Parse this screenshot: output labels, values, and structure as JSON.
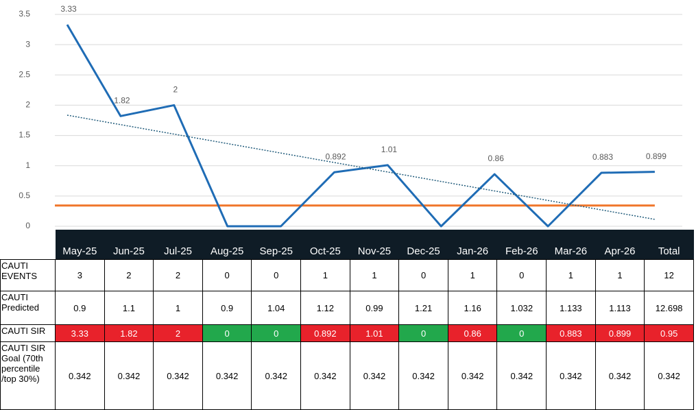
{
  "chart_data": {
    "type": "line",
    "ylim": [
      0,
      3.5
    ],
    "yticks": [
      0,
      0.5,
      1,
      1.5,
      2,
      2.5,
      3,
      3.5
    ],
    "grid": true,
    "trendline": "linear",
    "series": [
      {
        "color": "#1f6cb5",
        "values": [
          3.33,
          1.82,
          2,
          0,
          0,
          0.892,
          1.01,
          0,
          0.86,
          0,
          0.883,
          0.899
        ],
        "data_labels": true,
        "trendline_color": "#1f5a7a"
      },
      {
        "color": "#f0762a",
        "values": [
          0.342,
          0.342,
          0.342,
          0.342,
          0.342,
          0.342,
          0.342,
          0.342,
          0.342,
          0.342,
          0.342,
          0.342
        ],
        "data_labels": false
      }
    ]
  },
  "table": {
    "columns": [
      "May-25",
      "Jun-25",
      "Jul-25",
      "Aug-25",
      "Sep-25",
      "Oct-25",
      "Nov-25",
      "Dec-25",
      "Jan-26",
      "Feb-26",
      "Mar-26",
      "Apr-26",
      "Total"
    ],
    "cell_colors": {
      "above_goal": "#e8222b",
      "at_or_below_goal": "#22a84c"
    },
    "rows": [
      {
        "label": "CAUTI EVENTS",
        "cells": [
          3,
          2,
          2,
          0,
          0,
          1,
          1,
          0,
          1,
          0,
          1,
          1,
          12
        ]
      },
      {
        "label": "CAUTI Predicted",
        "cells": [
          0.9,
          1.1,
          1,
          0.9,
          1.04,
          1.12,
          0.99,
          1.21,
          1.16,
          1.032,
          1.133,
          1.113,
          12.698
        ]
      },
      {
        "label": "CAUTI SIR",
        "cells": [
          3.33,
          1.82,
          2,
          0,
          0,
          0.892,
          1.01,
          0,
          0.86,
          0,
          0.883,
          0.899,
          0.95
        ],
        "colored": true
      },
      {
        "label": "CAUTI SIR Goal (70th percentile /top 30%)",
        "cells": [
          0.342,
          0.342,
          0.342,
          0.342,
          0.342,
          0.342,
          0.342,
          0.342,
          0.342,
          0.342,
          0.342,
          0.342,
          0.342
        ]
      }
    ]
  }
}
